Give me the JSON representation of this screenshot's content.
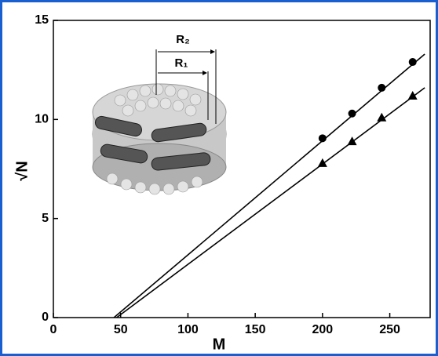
{
  "chart_data": {
    "type": "scatter",
    "xlabel": "M",
    "ylabel": "√N",
    "xlim": [
      0,
      280
    ],
    "ylim": [
      0,
      15
    ],
    "xticks": [
      0,
      50,
      100,
      150,
      200,
      250
    ],
    "yticks": [
      0,
      5,
      10,
      15
    ],
    "series": [
      {
        "marker": "circle",
        "color": "#000000",
        "x": [
          200,
          222,
          244,
          267
        ],
        "values": [
          9.05,
          10.3,
          11.6,
          12.9
        ]
      },
      {
        "marker": "triangle",
        "color": "#000000",
        "x": [
          200,
          222,
          244,
          267
        ],
        "values": [
          7.8,
          8.9,
          10.1,
          11.2
        ]
      }
    ],
    "fit_lines": [
      {
        "x": [
          45,
          276
        ],
        "values": [
          0,
          13.3
        ]
      },
      {
        "x": [
          47,
          276
        ],
        "values": [
          0,
          11.6
        ]
      }
    ],
    "annotations": [
      "R₂",
      "R₁"
    ]
  }
}
